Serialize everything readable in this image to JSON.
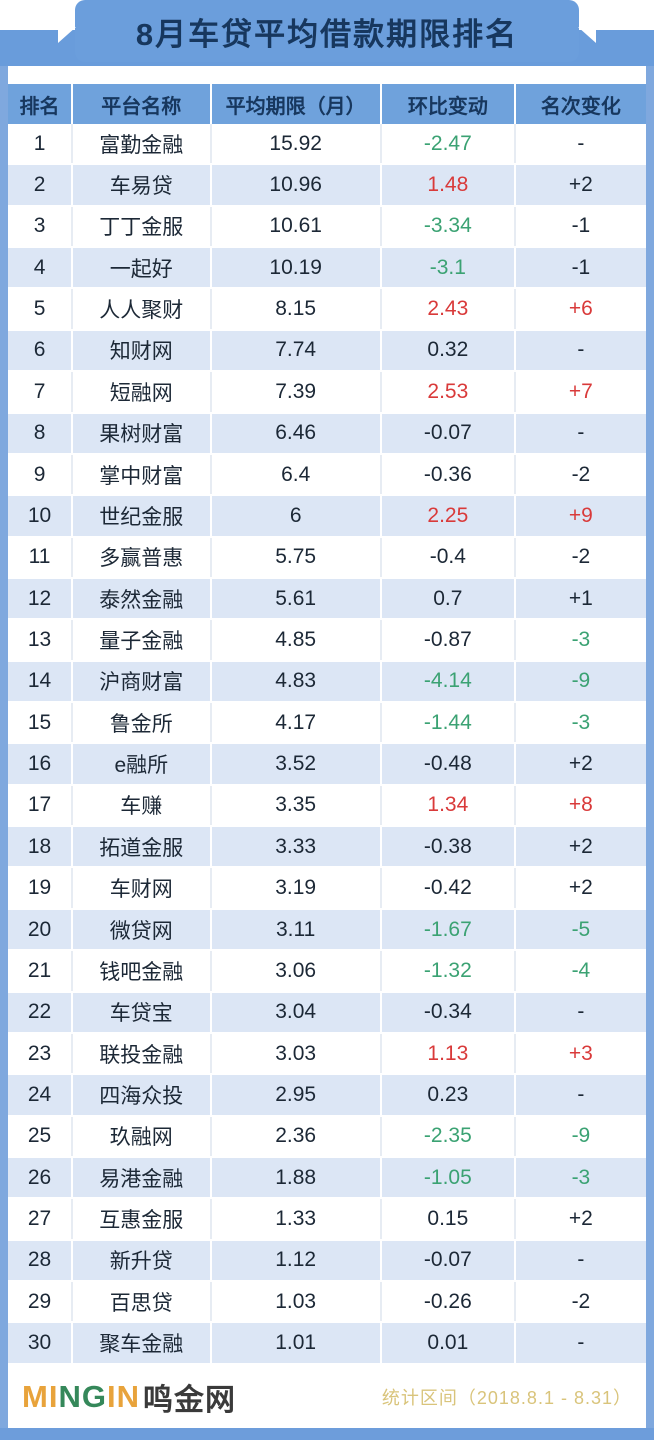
{
  "title": "8月车贷平均借款期限排名",
  "colors": {
    "dark": "#1C2836",
    "green": "#3BA273",
    "red": "#D93A3A",
    "band_blue": "#699CDB",
    "header_blue": "#6FA2DC",
    "alt_row_blue": "#DCE6F5",
    "navy_text": "#17375E",
    "logo_gold": "#E8A33B",
    "logo_green": "#35885A",
    "stats_gold": "#D9C47B"
  },
  "chart_data": {
    "type": "table",
    "title": "8月车贷平均借款期限排名",
    "columns": [
      "排名",
      "平台名称",
      "平均期限（月）",
      "环比变动",
      "名次变化"
    ],
    "rows": [
      {
        "rank": "1",
        "name": "富勤金融",
        "term": "15.92",
        "change": "-2.47",
        "change_color": "green",
        "rank_change": "-",
        "rank_change_color": "dark"
      },
      {
        "rank": "2",
        "name": "车易贷",
        "term": "10.96",
        "change": "1.48",
        "change_color": "red",
        "rank_change": "+2",
        "rank_change_color": "dark"
      },
      {
        "rank": "3",
        "name": "丁丁金服",
        "term": "10.61",
        "change": "-3.34",
        "change_color": "green",
        "rank_change": "-1",
        "rank_change_color": "dark"
      },
      {
        "rank": "4",
        "name": "一起好",
        "term": "10.19",
        "change": "-3.1",
        "change_color": "green",
        "rank_change": "-1",
        "rank_change_color": "dark"
      },
      {
        "rank": "5",
        "name": "人人聚财",
        "term": "8.15",
        "change": "2.43",
        "change_color": "red",
        "rank_change": "+6",
        "rank_change_color": "red"
      },
      {
        "rank": "6",
        "name": "知财网",
        "term": "7.74",
        "change": "0.32",
        "change_color": "dark",
        "rank_change": "-",
        "rank_change_color": "dark"
      },
      {
        "rank": "7",
        "name": "短融网",
        "term": "7.39",
        "change": "2.53",
        "change_color": "red",
        "rank_change": "+7",
        "rank_change_color": "red"
      },
      {
        "rank": "8",
        "name": "果树财富",
        "term": "6.46",
        "change": "-0.07",
        "change_color": "dark",
        "rank_change": "-",
        "rank_change_color": "dark"
      },
      {
        "rank": "9",
        "name": "掌中财富",
        "term": "6.4",
        "change": "-0.36",
        "change_color": "dark",
        "rank_change": "-2",
        "rank_change_color": "dark"
      },
      {
        "rank": "10",
        "name": "世纪金服",
        "term": "6",
        "change": "2.25",
        "change_color": "red",
        "rank_change": "+9",
        "rank_change_color": "red"
      },
      {
        "rank": "11",
        "name": "多赢普惠",
        "term": "5.75",
        "change": "-0.4",
        "change_color": "dark",
        "rank_change": "-2",
        "rank_change_color": "dark"
      },
      {
        "rank": "12",
        "name": "泰然金融",
        "term": "5.61",
        "change": "0.7",
        "change_color": "dark",
        "rank_change": "+1",
        "rank_change_color": "dark"
      },
      {
        "rank": "13",
        "name": "量子金融",
        "term": "4.85",
        "change": "-0.87",
        "change_color": "dark",
        "rank_change": "-3",
        "rank_change_color": "green"
      },
      {
        "rank": "14",
        "name": "沪商财富",
        "term": "4.83",
        "change": "-4.14",
        "change_color": "green",
        "rank_change": "-9",
        "rank_change_color": "green"
      },
      {
        "rank": "15",
        "name": "鲁金所",
        "term": "4.17",
        "change": "-1.44",
        "change_color": "green",
        "rank_change": "-3",
        "rank_change_color": "green"
      },
      {
        "rank": "16",
        "name": "e融所",
        "term": "3.52",
        "change": "-0.48",
        "change_color": "dark",
        "rank_change": "+2",
        "rank_change_color": "dark"
      },
      {
        "rank": "17",
        "name": "车赚",
        "term": "3.35",
        "change": "1.34",
        "change_color": "red",
        "rank_change": "+8",
        "rank_change_color": "red"
      },
      {
        "rank": "18",
        "name": "拓道金服",
        "term": "3.33",
        "change": "-0.38",
        "change_color": "dark",
        "rank_change": "+2",
        "rank_change_color": "dark"
      },
      {
        "rank": "19",
        "name": "车财网",
        "term": "3.19",
        "change": "-0.42",
        "change_color": "dark",
        "rank_change": "+2",
        "rank_change_color": "dark"
      },
      {
        "rank": "20",
        "name": "微贷网",
        "term": "3.11",
        "change": "-1.67",
        "change_color": "green",
        "rank_change": "-5",
        "rank_change_color": "green"
      },
      {
        "rank": "21",
        "name": "钱吧金融",
        "term": "3.06",
        "change": "-1.32",
        "change_color": "green",
        "rank_change": "-4",
        "rank_change_color": "green"
      },
      {
        "rank": "22",
        "name": "车贷宝",
        "term": "3.04",
        "change": "-0.34",
        "change_color": "dark",
        "rank_change": "-",
        "rank_change_color": "dark"
      },
      {
        "rank": "23",
        "name": "联投金融",
        "term": "3.03",
        "change": "1.13",
        "change_color": "red",
        "rank_change": "+3",
        "rank_change_color": "red"
      },
      {
        "rank": "24",
        "name": "四海众投",
        "term": "2.95",
        "change": "0.23",
        "change_color": "dark",
        "rank_change": "-",
        "rank_change_color": "dark"
      },
      {
        "rank": "25",
        "name": "玖融网",
        "term": "2.36",
        "change": "-2.35",
        "change_color": "green",
        "rank_change": "-9",
        "rank_change_color": "green"
      },
      {
        "rank": "26",
        "name": "易港金融",
        "term": "1.88",
        "change": "-1.05",
        "change_color": "green",
        "rank_change": "-3",
        "rank_change_color": "green"
      },
      {
        "rank": "27",
        "name": "互惠金服",
        "term": "1.33",
        "change": "0.15",
        "change_color": "dark",
        "rank_change": "+2",
        "rank_change_color": "dark"
      },
      {
        "rank": "28",
        "name": "新升贷",
        "term": "1.12",
        "change": "-0.07",
        "change_color": "dark",
        "rank_change": "-",
        "rank_change_color": "dark"
      },
      {
        "rank": "29",
        "name": "百思贷",
        "term": "1.03",
        "change": "-0.26",
        "change_color": "dark",
        "rank_change": "-2",
        "rank_change_color": "dark"
      },
      {
        "rank": "30",
        "name": "聚车金融",
        "term": "1.01",
        "change": "0.01",
        "change_color": "dark",
        "rank_change": "-",
        "rank_change_color": "dark"
      }
    ]
  },
  "footer": {
    "logo_letters": [
      {
        "ch": "M",
        "color": "#E8A33B"
      },
      {
        "ch": "I",
        "color": "#E8A33B"
      },
      {
        "ch": "N",
        "color": "#35885A"
      },
      {
        "ch": "G",
        "color": "#35885A"
      },
      {
        "ch": "I",
        "color": "#E8A33B"
      },
      {
        "ch": "N",
        "color": "#E8A33B"
      }
    ],
    "logo_cn": "鸣金网",
    "stats": "统计区间（2018.8.1 - 8.31）"
  }
}
